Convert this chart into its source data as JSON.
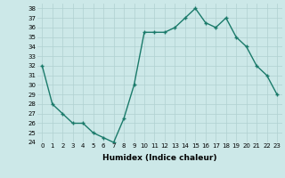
{
  "x": [
    0,
    1,
    2,
    3,
    4,
    5,
    6,
    7,
    8,
    9,
    10,
    11,
    12,
    13,
    14,
    15,
    16,
    17,
    18,
    19,
    20,
    21,
    22,
    23
  ],
  "y": [
    32,
    28,
    27,
    26,
    26,
    25,
    24.5,
    24,
    26.5,
    30,
    35.5,
    35.5,
    35.5,
    36,
    37,
    38,
    36.5,
    36,
    37,
    35,
    34,
    32,
    31,
    29
  ],
  "line_color": "#1a7a6a",
  "marker": "+",
  "marker_size": 3.5,
  "marker_lw": 1.0,
  "line_width": 1.0,
  "bg_color": "#cce8e8",
  "grid_color": "#b0d0d0",
  "xlabel": "Humidex (Indice chaleur)",
  "xlabel_fontsize": 6.5,
  "xlabel_fontweight": "bold",
  "tick_fontsize": 5,
  "ylim": [
    24,
    38.5
  ],
  "xlim": [
    -0.5,
    23.5
  ],
  "yticks": [
    24,
    25,
    26,
    27,
    28,
    29,
    30,
    31,
    32,
    33,
    34,
    35,
    36,
    37,
    38
  ],
  "xticks": [
    0,
    1,
    2,
    3,
    4,
    5,
    6,
    7,
    8,
    9,
    10,
    11,
    12,
    13,
    14,
    15,
    16,
    17,
    18,
    19,
    20,
    21,
    22,
    23
  ]
}
